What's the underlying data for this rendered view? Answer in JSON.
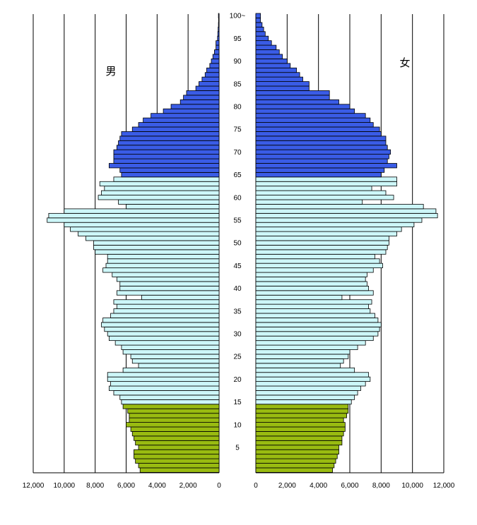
{
  "chart_data": {
    "type": "bar",
    "title": "",
    "orientation": "horizontal-pyramid",
    "left_label": "男",
    "right_label": "女",
    "x_range": [
      0,
      12000
    ],
    "x_ticks_left": [
      "12,000",
      "10,000",
      "8,000",
      "6,000",
      "4,000",
      "2,000",
      "0"
    ],
    "x_ticks_right": [
      "0",
      "2,000",
      "4,000",
      "6,000",
      "8,000",
      "10,000",
      "12,000"
    ],
    "age_labels": [
      {
        "age": 5,
        "label": "5"
      },
      {
        "age": 10,
        "label": "10"
      },
      {
        "age": 15,
        "label": "15"
      },
      {
        "age": 20,
        "label": "20"
      },
      {
        "age": 25,
        "label": "25"
      },
      {
        "age": 30,
        "label": "30"
      },
      {
        "age": 35,
        "label": "35"
      },
      {
        "age": 40,
        "label": "40"
      },
      {
        "age": 45,
        "label": "45"
      },
      {
        "age": 50,
        "label": "50"
      },
      {
        "age": 55,
        "label": "55"
      },
      {
        "age": 60,
        "label": "60"
      },
      {
        "age": 65,
        "label": "65"
      },
      {
        "age": 70,
        "label": "70"
      },
      {
        "age": 75,
        "label": "75"
      },
      {
        "age": 80,
        "label": "80"
      },
      {
        "age": 85,
        "label": "85"
      },
      {
        "age": 90,
        "label": "90"
      },
      {
        "age": 95,
        "label": "95"
      },
      {
        "age": 100,
        "label": "100~"
      }
    ],
    "grid": "vertical",
    "colors": {
      "ages_0_14": "#99bb11",
      "ages_15_64": "#cdf7f9",
      "ages_65_plus": "#3a5ce6",
      "bar_outline": "#000000",
      "grid_line": "#000000"
    },
    "age_groups": [
      {
        "name": "0-14",
        "from": 0,
        "to": 14
      },
      {
        "name": "15-64",
        "from": 15,
        "to": 64
      },
      {
        "name": "65+",
        "from": 65,
        "to": 100
      }
    ],
    "ages": [
      0,
      1,
      2,
      3,
      4,
      5,
      6,
      7,
      8,
      9,
      10,
      11,
      12,
      13,
      14,
      15,
      16,
      17,
      18,
      19,
      20,
      21,
      22,
      23,
      24,
      25,
      26,
      27,
      28,
      29,
      30,
      31,
      32,
      33,
      34,
      35,
      36,
      37,
      38,
      39,
      40,
      41,
      42,
      43,
      44,
      45,
      46,
      47,
      48,
      49,
      50,
      51,
      52,
      53,
      54,
      55,
      56,
      57,
      58,
      59,
      60,
      61,
      62,
      63,
      64,
      65,
      66,
      67,
      68,
      69,
      70,
      71,
      72,
      73,
      74,
      75,
      76,
      77,
      78,
      79,
      80,
      81,
      82,
      83,
      84,
      85,
      86,
      87,
      88,
      89,
      90,
      91,
      92,
      93,
      94,
      95,
      96,
      97,
      98,
      99,
      100
    ],
    "series": [
      {
        "name": "男",
        "values": [
          5100,
          5200,
          5400,
          5500,
          5500,
          5200,
          5400,
          5500,
          5600,
          5700,
          6000,
          5800,
          5800,
          5900,
          6200,
          6300,
          6400,
          6800,
          7100,
          7000,
          7200,
          7200,
          6200,
          5200,
          5600,
          5700,
          6200,
          6300,
          6700,
          7100,
          7200,
          7400,
          7600,
          7500,
          7000,
          6800,
          6600,
          6800,
          5000,
          6600,
          6400,
          6400,
          6600,
          6900,
          7500,
          7300,
          7200,
          7200,
          8000,
          8100,
          8100,
          8600,
          9100,
          9600,
          10000,
          11100,
          11000,
          10000,
          6000,
          6500,
          7800,
          7600,
          7400,
          7700,
          6800,
          6300,
          6400,
          7100,
          6800,
          6800,
          6800,
          6600,
          6500,
          6400,
          6300,
          5600,
          5200,
          4900,
          4400,
          3600,
          3100,
          2500,
          2300,
          2100,
          1500,
          1300,
          1100,
          900,
          800,
          600,
          500,
          400,
          300,
          200,
          200,
          100,
          80,
          60,
          40,
          30,
          40
        ]
      },
      {
        "name": "女",
        "values": [
          4900,
          5000,
          5100,
          5200,
          5300,
          5300,
          5500,
          5500,
          5600,
          5700,
          5700,
          5600,
          5800,
          5900,
          5900,
          6100,
          6300,
          6500,
          6700,
          7000,
          7300,
          7200,
          6300,
          5400,
          5600,
          5900,
          6000,
          6500,
          7000,
          7500,
          7800,
          7900,
          8000,
          7800,
          7600,
          7300,
          7200,
          7400,
          5500,
          7500,
          7200,
          7100,
          7000,
          7100,
          7500,
          8100,
          7900,
          7600,
          8300,
          8400,
          8500,
          8500,
          9000,
          9300,
          10100,
          10600,
          11600,
          11500,
          10700,
          6800,
          8800,
          8300,
          7400,
          9000,
          9000,
          8000,
          8200,
          9000,
          8400,
          8500,
          8600,
          8400,
          8300,
          8300,
          8000,
          7900,
          7500,
          7300,
          7000,
          6300,
          6000,
          5300,
          4700,
          4700,
          3400,
          3400,
          3000,
          2800,
          2600,
          2200,
          2000,
          1700,
          1500,
          1300,
          1000,
          800,
          600,
          500,
          400,
          300,
          300
        ]
      }
    ]
  }
}
